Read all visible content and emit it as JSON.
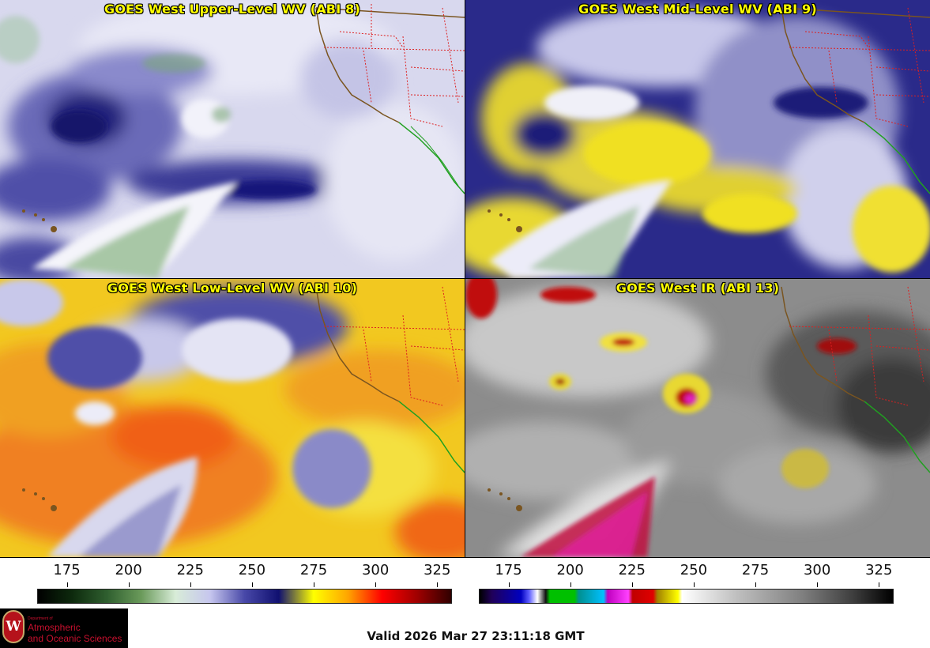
{
  "panels": [
    {
      "id": "p1",
      "title": "GOES West Upper-Level WV (ABI 8)"
    },
    {
      "id": "p2",
      "title": "GOES West Mid-Level WV (ABI 9)"
    },
    {
      "id": "p3",
      "title": "GOES West Low-Level WV (ABI 10)"
    },
    {
      "id": "p4",
      "title": "GOES West IR (ABI 13)"
    }
  ],
  "colorbars": {
    "wv": {
      "ticks": [
        "175",
        "200",
        "225",
        "250",
        "275",
        "300",
        "325"
      ],
      "range": [
        163,
        331
      ],
      "stops": [
        "#000000",
        "#0d2a0d",
        "#2f5f2f",
        "#6a9a5a",
        "#d8ecd8",
        "#c6c6ee",
        "#4848a8",
        "#101070",
        "#ffff00",
        "#ffa500",
        "#ff0000",
        "#a00000",
        "#300000"
      ]
    },
    "ir": {
      "ticks": [
        "175",
        "200",
        "225",
        "250",
        "275",
        "300",
        "325"
      ],
      "range": [
        163,
        331
      ]
    }
  },
  "logo": {
    "seal_letter": "W",
    "small_text": "Department of",
    "line1": "Atmospheric",
    "line2": "and Oceanic Sciences"
  },
  "valid_text": "Valid 2026 Mar 27 23:11:18 GMT",
  "colors": {
    "title_text": "#ffff00",
    "state_borders": "#dd2020",
    "coastline": "#7a5520",
    "mexico_coast": "#20a020"
  }
}
